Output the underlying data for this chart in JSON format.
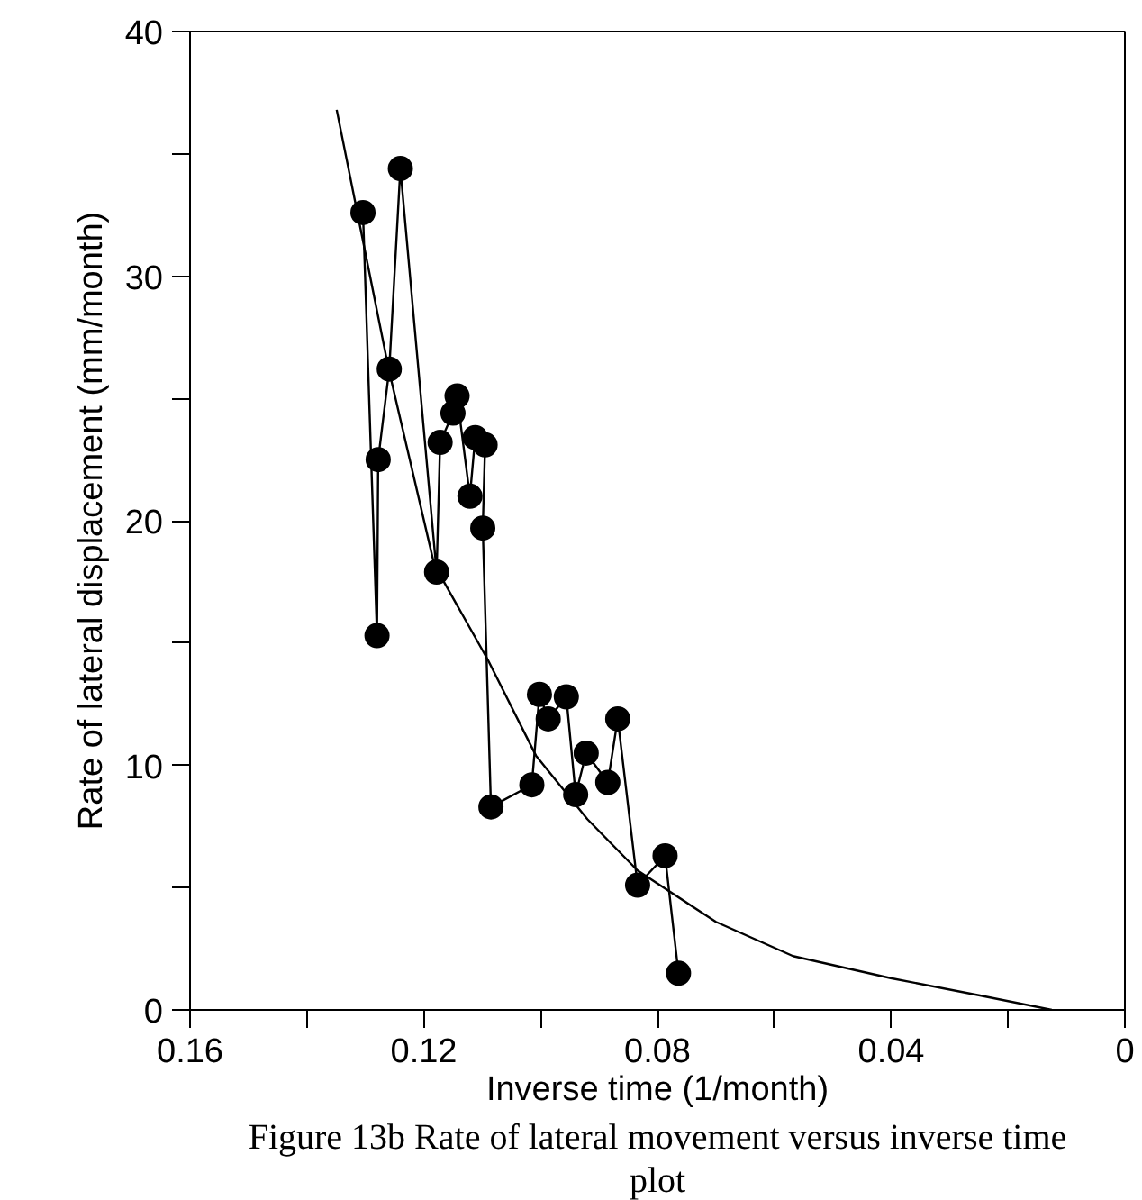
{
  "chart_data": {
    "type": "line",
    "xlabel": "Inverse time (1/month)",
    "ylabel": "Rate of lateral displacement (mm/month)",
    "annotations": [
      "Figure 13b Rate of lateral movement versus inverse time plot"
    ],
    "xlim": [
      0.16,
      0
    ],
    "xticks": [
      0.16,
      {
        "value": 0.14,
        "label": null
      },
      0.12,
      {
        "value": 0.1,
        "label": null
      },
      0.08,
      {
        "value": 0.06,
        "label": null
      },
      0.04,
      {
        "value": 0.02,
        "label": null
      },
      0
    ],
    "ylim": [
      0,
      40
    ],
    "yticks": [
      0,
      {
        "value": 5,
        "label": null
      },
      10,
      {
        "value": 15,
        "label": null
      },
      20,
      {
        "value": 25,
        "label": null
      },
      30,
      {
        "value": 35,
        "label": null
      },
      40
    ],
    "grid": false,
    "series": [
      {
        "color": "#000000",
        "marker": "circle",
        "x": [
          0.1304,
          0.128,
          0.1278,
          0.1259,
          0.124,
          0.1178,
          0.1172,
          0.115,
          0.1143,
          0.1121,
          0.1112,
          0.1095,
          0.1099,
          0.1085,
          0.1015,
          0.1002,
          0.0987,
          0.0956,
          0.094,
          0.0922,
          0.0885,
          0.0868,
          0.0834,
          0.0787,
          0.0764
        ],
        "values": [
          32.6,
          15.3,
          22.5,
          26.2,
          34.4,
          17.9,
          23.2,
          24.4,
          25.1,
          21.0,
          23.4,
          23.1,
          19.7,
          8.3,
          9.2,
          12.9,
          11.9,
          12.8,
          8.8,
          10.5,
          9.3,
          11.9,
          5.1,
          6.3,
          1.5
        ]
      },
      {
        "color": "#000000",
        "marker": "none",
        "x": [
          0.1349,
          0.126,
          0.1182,
          0.109,
          0.1008,
          0.092,
          0.0834,
          0.07,
          0.0568,
          0.0401,
          0.025,
          0.0125
        ],
        "values": [
          36.8,
          26.2,
          18.2,
          14.3,
          10.4,
          7.8,
          5.7,
          3.6,
          2.2,
          1.3,
          0.6,
          0
        ]
      }
    ]
  }
}
